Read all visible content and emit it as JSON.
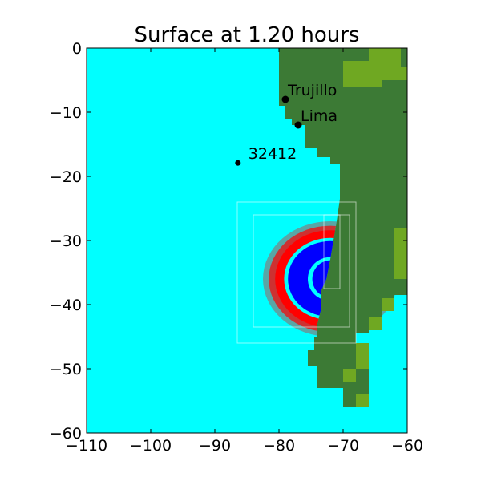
{
  "chart_data": {
    "type": "heatmap",
    "title": "Surface at 1.20 hours",
    "xlabel": "",
    "ylabel": "",
    "xlim": [
      -110,
      -60
    ],
    "ylim": [
      -60,
      0
    ],
    "xticks": [
      -110,
      -100,
      -90,
      -80,
      -70,
      -60
    ],
    "yticks": [
      0,
      -10,
      -20,
      -30,
      -40,
      -50,
      -60
    ],
    "xtick_labels": [
      "−110",
      "−100",
      "−90",
      "−80",
      "−70",
      "−60"
    ],
    "ytick_labels": [
      "0",
      "−10",
      "−20",
      "−30",
      "−40",
      "−50",
      "−60"
    ],
    "grid": false,
    "colors": {
      "ocean": "#00ffff",
      "land": "#3c7a35",
      "highland": "#6fa822",
      "wave_positive": "#ff0000",
      "wave_negative": "#0000ff"
    },
    "locations": [
      {
        "name": "Trujillo",
        "x": -79.0,
        "y": -8.0
      },
      {
        "name": "Lima",
        "x": -77.0,
        "y": -12.0
      },
      {
        "name": "32412",
        "x": -86.4,
        "y": -17.9
      }
    ],
    "grid_boxes": [
      {
        "x0": -86.5,
        "x1": -68.0,
        "y0": -46.0,
        "y1": -24.0
      },
      {
        "x0": -84.0,
        "x1": -69.0,
        "y0": -43.5,
        "y1": -26.0
      },
      {
        "x0": -73.0,
        "x1": -70.5,
        "y0": -37.5,
        "y1": -26.0
      }
    ],
    "coastline": [
      [
        -80.0,
        0
      ],
      [
        -80.0,
        -9.0
      ],
      [
        -79.0,
        -9.0
      ],
      [
        -79.0,
        -11.0
      ],
      [
        -78.0,
        -11.0
      ],
      [
        -78.0,
        -12.0
      ],
      [
        -76.0,
        -12.0
      ],
      [
        -76.0,
        -15.5
      ],
      [
        -74.0,
        -15.5
      ],
      [
        -74.0,
        -17.0
      ],
      [
        -72.0,
        -17.0
      ],
      [
        -72.0,
        -18.0
      ],
      [
        -70.5,
        -18.0
      ],
      [
        -70.5,
        -23.5
      ],
      [
        -71.0,
        -27.0
      ],
      [
        -71.5,
        -30.0
      ],
      [
        -72.0,
        -33.0
      ],
      [
        -72.6,
        -36.0
      ],
      [
        -73.5,
        -38.0
      ],
      [
        -73.5,
        -41.0
      ],
      [
        -74.0,
        -43.0
      ],
      [
        -74.0,
        -45.0
      ],
      [
        -74.5,
        -45.0
      ],
      [
        -74.5,
        -47.0
      ],
      [
        -75.5,
        -47.0
      ],
      [
        -75.5,
        -49.5
      ],
      [
        -74.0,
        -49.5
      ],
      [
        -74.0,
        -53.0
      ],
      [
        -70.0,
        -53.0
      ],
      [
        -70.0,
        -56.0
      ],
      [
        -67.5,
        -56.0
      ],
      [
        -67.5,
        -54.0
      ],
      [
        -66.0,
        -54.0
      ],
      [
        -66.0,
        -48.0
      ],
      [
        -68.0,
        -48.0
      ],
      [
        -68.0,
        -44.5
      ],
      [
        -66.0,
        -44.5
      ],
      [
        -66.0,
        -42.5
      ],
      [
        -64.0,
        -42.5
      ],
      [
        -64.0,
        -40.0
      ],
      [
        -62.0,
        -40.0
      ],
      [
        -62.0,
        -38.5
      ],
      [
        -60.0,
        -38.5
      ],
      [
        -60.0,
        0
      ]
    ],
    "highland_cells": [
      [
        -70,
        -2,
        -64,
        -6
      ],
      [
        -66,
        0,
        -61,
        -4
      ],
      [
        -64,
        -3,
        -60,
        -5
      ],
      [
        -62,
        -28,
        -60,
        -36
      ],
      [
        -64,
        -39,
        -62,
        -41
      ],
      [
        -66,
        -42,
        -64,
        -44
      ],
      [
        -68,
        -46,
        -66,
        -50
      ],
      [
        -70,
        -50,
        -68,
        -52
      ],
      [
        -68,
        -54,
        -66,
        -56
      ]
    ],
    "wave": {
      "center": [
        -72.0,
        -36.0
      ],
      "rings": [
        {
          "rx": 10.5,
          "ry": 9.0,
          "color": "wave_positive",
          "opacity": 0.35
        },
        {
          "rx": 9.6,
          "ry": 8.3,
          "color": "wave_positive",
          "opacity": 0.7
        },
        {
          "rx": 8.6,
          "ry": 7.6,
          "color": "wave_positive",
          "opacity": 1.0
        },
        {
          "rx": 7.2,
          "ry": 6.4,
          "color": "ocean",
          "opacity": 1.0
        },
        {
          "rx": 6.6,
          "ry": 5.9,
          "color": "wave_negative",
          "opacity": 1.0
        },
        {
          "rx": 3.5,
          "ry": 3.4,
          "color": "ocean",
          "opacity": 1.0
        },
        {
          "rx": 2.8,
          "ry": 2.9,
          "color": "wave_negative",
          "opacity": 1.0
        }
      ]
    }
  }
}
